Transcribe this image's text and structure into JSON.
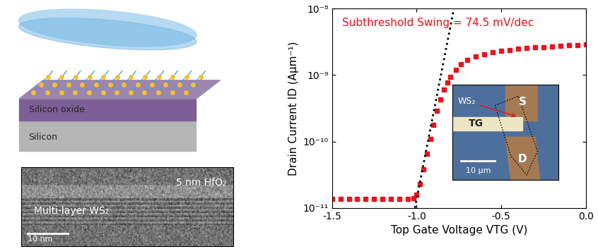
{
  "chart_data": {
    "type": "scatter",
    "annotation": {
      "text": "Subthreshold Swing = 74.5 mV/dec",
      "color": "#e8141c"
    },
    "x_label": "Top Gate Voltage VTG (V)",
    "y_label": "Drain Current ID (Aμm⁻¹)",
    "log": "y",
    "xlim": [
      -1.5,
      0.0
    ],
    "ylim": [
      1e-11,
      1e-08
    ],
    "xticks": [
      -1.5,
      -1.0,
      -0.5,
      0.0
    ],
    "yticks": [
      {
        "value": 1e-11,
        "label": "10⁻¹¹"
      },
      {
        "value": 1e-10,
        "label": "10⁻¹⁰"
      },
      {
        "value": 1e-09,
        "label": "10⁻⁹"
      },
      {
        "value": 1e-08,
        "label": "10⁻⁸"
      }
    ],
    "series": [
      {
        "type": "scatter",
        "color": "#e8141c",
        "marker": "square",
        "x": [
          -1.5,
          -1.45,
          -1.4,
          -1.35,
          -1.3,
          -1.25,
          -1.2,
          -1.15,
          -1.1,
          -1.05,
          -1.02,
          -1.0,
          -0.98,
          -0.96,
          -0.94,
          -0.92,
          -0.9,
          -0.88,
          -0.86,
          -0.84,
          -0.82,
          -0.8,
          -0.77,
          -0.74,
          -0.7,
          -0.65,
          -0.6,
          -0.55,
          -0.5,
          -0.45,
          -0.4,
          -0.35,
          -0.3,
          -0.25,
          -0.2,
          -0.15,
          -0.1,
          -0.05,
          0.0
        ],
        "values": [
          1.35e-11,
          1.35e-11,
          1.35e-11,
          1.35e-11,
          1.35e-11,
          1.35e-11,
          1.35e-11,
          1.35e-11,
          1.35e-11,
          1.35e-11,
          1.4e-11,
          1.6e-11,
          2.3e-11,
          3.8e-11,
          6.5e-11,
          1.1e-10,
          1.8e-10,
          2.9e-10,
          4.3e-10,
          6e-10,
          7.8e-10,
          9.5e-10,
          1.2e-09,
          1.45e-09,
          1.7e-09,
          1.9e-09,
          2.05e-09,
          2.2e-09,
          2.3e-09,
          2.4e-09,
          2.5e-09,
          2.55e-09,
          2.6e-09,
          2.65e-09,
          2.7e-09,
          2.75e-09,
          2.8e-09,
          2.85e-09,
          2.9e-09
        ]
      },
      {
        "type": "line",
        "color": "#000000",
        "line_style": "dotted",
        "x": [
          -1.01,
          -0.78
        ],
        "values": [
          1e-11,
          1e-08
        ]
      }
    ]
  },
  "inset": {
    "labels": {
      "flake": "WS₂",
      "gate": "TG",
      "source": "S",
      "drain": "D"
    },
    "scale_bar": "10 μm"
  },
  "schematic": {
    "labels": [
      "Silicon oxide",
      "Silicon"
    ]
  },
  "tem": {
    "labels": {
      "dielectric": "5 nm HfO₂",
      "channel": "Multi-layer WS₂"
    },
    "scale_bar": "10 nm"
  }
}
